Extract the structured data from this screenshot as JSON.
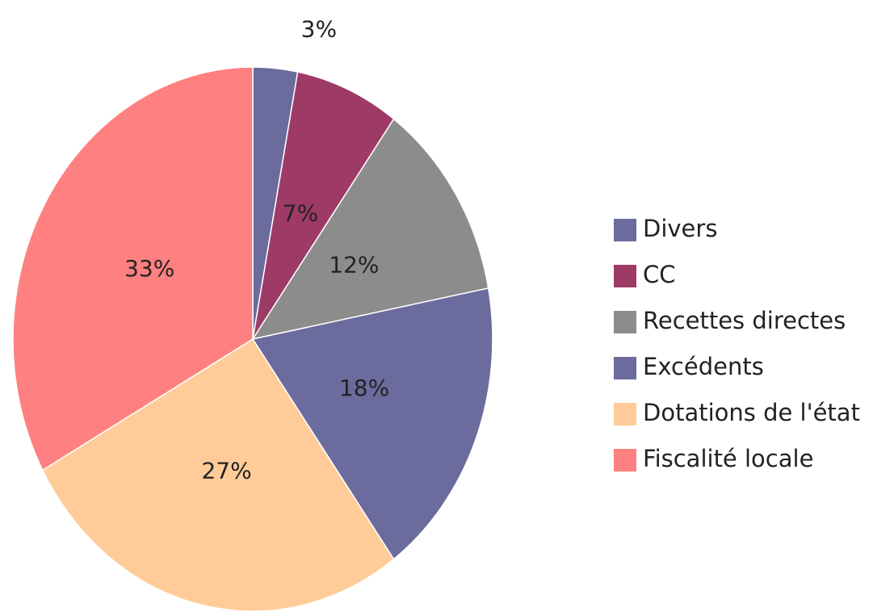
{
  "chart_data": {
    "type": "pie",
    "categories": [
      "Divers",
      "CC",
      "Recettes directes",
      "Excédents",
      "Dotations de l'état",
      "Fiscalité locale"
    ],
    "values": [
      3,
      7,
      12,
      18,
      27,
      33
    ],
    "value_labels": [
      "3%",
      "7%",
      "12%",
      "18%",
      "27%",
      "33%"
    ],
    "colors": [
      "#6b6b9e",
      "#9e3a66",
      "#8c8c8c",
      "#6b6b9e",
      "#ffcc99",
      "#ff8080"
    ],
    "legend": "right"
  }
}
